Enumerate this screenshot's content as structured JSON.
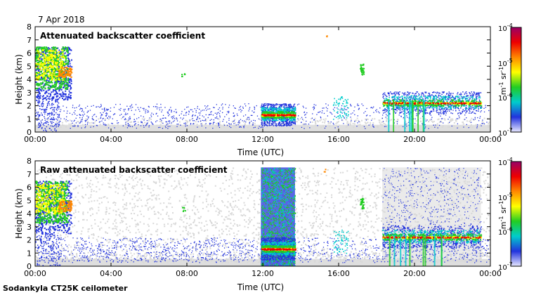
{
  "date_label": "7 Apr 2018",
  "footer_label": "Sodankyla CT25K ceilometer",
  "colorbar": {
    "unit_m": "m",
    "unit_m_exp": "-1",
    "unit_sr": " sr",
    "unit_sr_exp": "-1",
    "scale": "log",
    "ticks": [
      {
        "base": "10",
        "exp": "-4"
      },
      {
        "base": "10",
        "exp": "-5"
      },
      {
        "base": "10",
        "exp": "-6"
      },
      {
        "base": "10",
        "exp": "-7"
      }
    ],
    "colors": [
      "#e8e8ff",
      "#2233dd",
      "#00cccc",
      "#22cc22",
      "#ffff00",
      "#ff8800",
      "#ee0000",
      "#990066"
    ]
  },
  "chart_data": [
    {
      "type": "heatmap",
      "title": "Attenuated backscatter coefficient",
      "xlabel": "Time (UTC)",
      "ylabel": "Height (km)",
      "xlim": [
        "00:00",
        "24:00"
      ],
      "ylim": [
        0,
        8
      ],
      "x_ticks": [
        "00:00",
        "04:00",
        "08:00",
        "12:00",
        "16:00",
        "20:00",
        "00:00"
      ],
      "y_ticks": [
        0,
        1,
        2,
        3,
        4,
        5,
        6,
        7,
        8
      ],
      "grid": false,
      "features": [
        {
          "name": "high cloud",
          "t_start": 0.0,
          "t_end": 1.9,
          "h_low": 2.5,
          "h_high": 6.5
        },
        {
          "name": "low cloud layer",
          "t_start": 11.9,
          "t_end": 13.7,
          "h_low": 1.1,
          "h_high": 1.6
        },
        {
          "name": "cloud layer",
          "t_start": 18.3,
          "t_end": 23.5,
          "h_low": 2.0,
          "h_high": 2.5
        }
      ]
    },
    {
      "type": "heatmap",
      "title": "Raw attenuated backscatter coefficient",
      "xlabel": "Time (UTC)",
      "ylabel": "Height (km)",
      "xlim": [
        "00:00",
        "24:00"
      ],
      "ylim": [
        0,
        8
      ],
      "x_ticks": [
        "00:00",
        "04:00",
        "08:00",
        "12:00",
        "16:00",
        "20:00",
        "00:00"
      ],
      "y_ticks": [
        0,
        1,
        2,
        3,
        4,
        5,
        6,
        7,
        8
      ],
      "grid": false,
      "features": [
        {
          "name": "high cloud",
          "t_start": 0.0,
          "t_end": 1.9,
          "h_low": 2.5,
          "h_high": 6.5
        },
        {
          "name": "noisy period",
          "t_start": 11.9,
          "t_end": 13.7,
          "h_low": 0.0,
          "h_high": 7.5
        },
        {
          "name": "low cloud layer",
          "t_start": 11.9,
          "t_end": 13.7,
          "h_low": 1.1,
          "h_high": 1.6
        },
        {
          "name": "cloud layer",
          "t_start": 18.3,
          "t_end": 23.5,
          "h_low": 2.0,
          "h_high": 2.5
        }
      ]
    }
  ]
}
